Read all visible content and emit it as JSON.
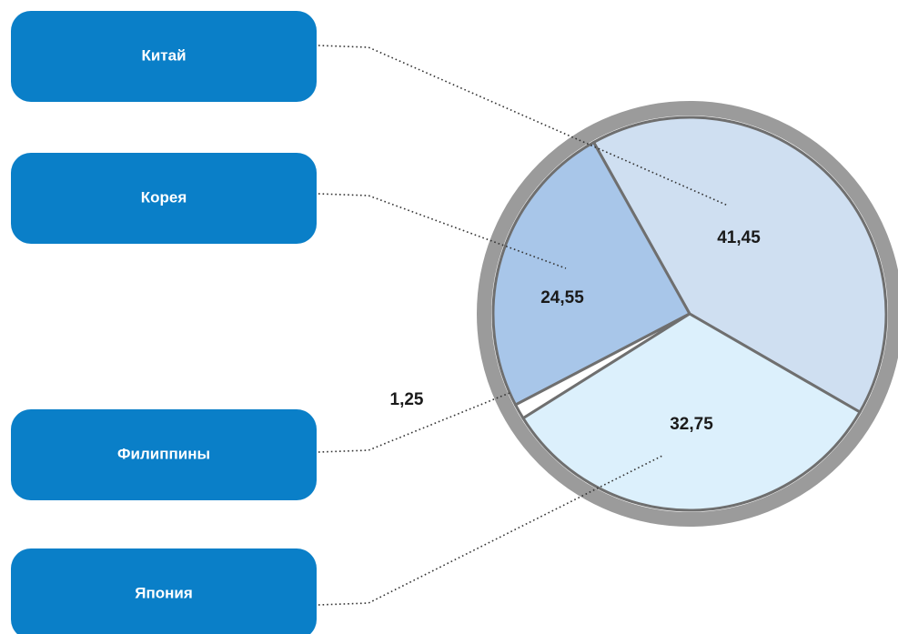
{
  "chart_data": {
    "type": "pie",
    "categories": [
      "Китай",
      "Корея",
      "Филиппины",
      "Япония"
    ],
    "values": [
      41.45,
      24.55,
      1.25,
      32.75
    ],
    "value_labels": [
      "41,45",
      "24,55",
      "1,25",
      "32,75"
    ],
    "colors": [
      "#cfdff1",
      "#a8c6e9",
      "#ffffff",
      "#dcf0fc"
    ]
  }
}
